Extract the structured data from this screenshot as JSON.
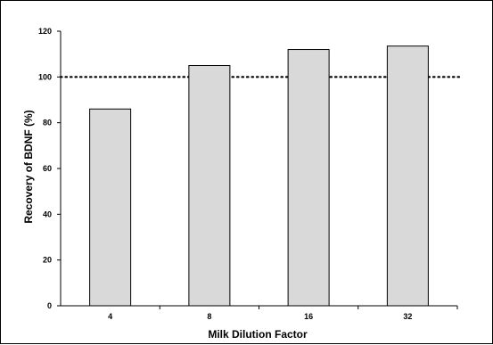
{
  "chart_data": {
    "type": "bar",
    "title": "",
    "xlabel": "Milk Dilution Factor",
    "ylabel": "Recovery of BDNF (%)",
    "categories": [
      "4",
      "8",
      "16",
      "32"
    ],
    "values": [
      86,
      105,
      112,
      113.5
    ],
    "ylim": [
      0,
      120
    ],
    "yticks": [
      "0",
      "20",
      "40",
      "60",
      "80",
      "100",
      "120"
    ],
    "reference_line": {
      "value": 100,
      "style": "dotted"
    },
    "grid": false,
    "legend": "none",
    "colors": {
      "bar_fill": "#d9d9d9",
      "bar_stroke": "#000000",
      "axis": "#000000"
    }
  }
}
